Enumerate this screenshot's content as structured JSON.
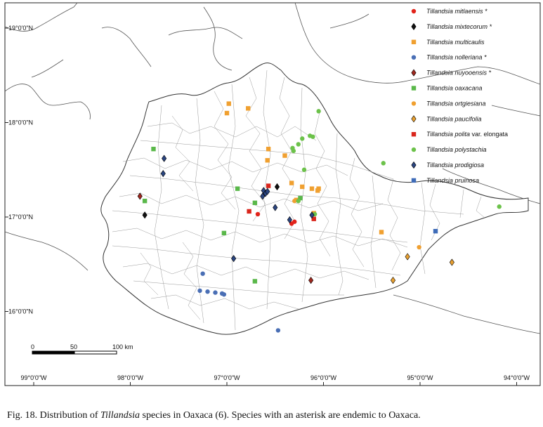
{
  "map": {
    "lat_labels": [
      {
        "lat": 19,
        "label": "19°0'0\"N"
      },
      {
        "lat": 18,
        "label": "18°0'0\"N"
      },
      {
        "lat": 17,
        "label": "17°0'0\"N"
      },
      {
        "lat": 16,
        "label": "16°0'0\"N"
      }
    ],
    "lon_labels": [
      {
        "lon": -99,
        "label": "99°0'0\"W"
      },
      {
        "lon": -98,
        "label": "98°0'0\"W"
      },
      {
        "lon": -97,
        "label": "97°0'0\"W"
      },
      {
        "lon": -96,
        "label": "96°0'0\"W"
      },
      {
        "lon": -95,
        "label": "95°0'0\"W"
      },
      {
        "lon": -94,
        "label": "94°0'0\"W"
      }
    ],
    "scale_bar": {
      "labels": [
        "0",
        "50",
        "100 km"
      ]
    },
    "colors": {
      "red": "#e2231a",
      "black": "#111111",
      "orange": "#f0a030",
      "blue": "#4a6fb5",
      "darkred": "#a0281e",
      "green": "#5ab84a",
      "lightgreen": "#6cc24a",
      "navy": "#2a4580",
      "poly_red": "#d9261c",
      "pruinosa": "#3f6cb8"
    }
  },
  "legend": [
    {
      "name": "Tillandsia mitlaensis *",
      "marker": "circle",
      "color": "#e2231a"
    },
    {
      "name": "Tillandsia mixtecorum *",
      "marker": "diamond",
      "color": "#111111"
    },
    {
      "name": "Tillandsia multicaulis",
      "marker": "square",
      "color": "#f0a030"
    },
    {
      "name": "Tillandsia nolleriana *",
      "marker": "circle",
      "color": "#4a6fb5"
    },
    {
      "name": "Tillandsia nuyooensis *",
      "marker": "diamond",
      "color": "#a0281e"
    },
    {
      "name": "Tillandsia oaxacana",
      "marker": "square",
      "color": "#5ab84a"
    },
    {
      "name": "Tillandsia ortgiesiana",
      "marker": "circle",
      "color": "#f0a030"
    },
    {
      "name": "Tillandsia paucifolia",
      "marker": "diamond",
      "color": "#e8a030"
    },
    {
      "name_italic": "Tillandsia polita",
      "name_rest": " var. elongata",
      "marker": "square",
      "color": "#d9261c"
    },
    {
      "name": "Tillandsia polystachia",
      "marker": "circle",
      "color": "#6cc24a"
    },
    {
      "name": "Tillandsia prodigiosa",
      "marker": "diamond",
      "color": "#2a4580"
    },
    {
      "name": "Tillandsia pruinosa",
      "marker": "square",
      "color": "#3f6cb8"
    }
  ],
  "records": [
    {
      "species": 0,
      "lon": -96.68,
      "lat": 17.03
    },
    {
      "species": 0,
      "lon": -96.33,
      "lat": 16.93
    },
    {
      "species": 0,
      "lon": -96.3,
      "lat": 16.95
    },
    {
      "species": 1,
      "lon": -97.85,
      "lat": 17.02
    },
    {
      "species": 1,
      "lon": -96.48,
      "lat": 17.32
    },
    {
      "species": 2,
      "lon": -96.98,
      "lat": 18.2
    },
    {
      "species": 2,
      "lon": -97.0,
      "lat": 18.1
    },
    {
      "species": 2,
      "lon": -96.78,
      "lat": 18.15
    },
    {
      "species": 2,
      "lon": -96.57,
      "lat": 17.72
    },
    {
      "species": 2,
      "lon": -96.58,
      "lat": 17.6
    },
    {
      "species": 2,
      "lon": -96.4,
      "lat": 17.65
    },
    {
      "species": 2,
      "lon": -96.12,
      "lat": 17.3
    },
    {
      "species": 2,
      "lon": -96.05,
      "lat": 17.3
    },
    {
      "species": 2,
      "lon": -96.06,
      "lat": 17.28
    },
    {
      "species": 2,
      "lon": -96.22,
      "lat": 17.32
    },
    {
      "species": 2,
      "lon": -96.33,
      "lat": 17.36
    },
    {
      "species": 2,
      "lon": -96.1,
      "lat": 17.04
    },
    {
      "species": 2,
      "lon": -96.28,
      "lat": 17.18
    },
    {
      "species": 2,
      "lon": -95.4,
      "lat": 16.84
    },
    {
      "species": 3,
      "lon": -97.25,
      "lat": 16.4
    },
    {
      "species": 3,
      "lon": -97.28,
      "lat": 16.22
    },
    {
      "species": 3,
      "lon": -97.2,
      "lat": 16.21
    },
    {
      "species": 3,
      "lon": -97.12,
      "lat": 16.2
    },
    {
      "species": 3,
      "lon": -97.05,
      "lat": 16.19
    },
    {
      "species": 3,
      "lon": -97.03,
      "lat": 16.18
    },
    {
      "species": 3,
      "lon": -96.47,
      "lat": 15.8
    },
    {
      "species": 4,
      "lon": -97.9,
      "lat": 17.22
    },
    {
      "species": 4,
      "lon": -96.13,
      "lat": 16.33
    },
    {
      "species": 5,
      "lon": -97.76,
      "lat": 17.72
    },
    {
      "species": 5,
      "lon": -97.85,
      "lat": 17.17
    },
    {
      "species": 5,
      "lon": -96.89,
      "lat": 17.3
    },
    {
      "species": 5,
      "lon": -96.71,
      "lat": 17.15
    },
    {
      "species": 5,
      "lon": -96.24,
      "lat": 17.2
    },
    {
      "species": 5,
      "lon": -97.03,
      "lat": 16.83
    },
    {
      "species": 5,
      "lon": -96.71,
      "lat": 16.32
    },
    {
      "species": 6,
      "lon": -96.3,
      "lat": 17.17
    },
    {
      "species": 6,
      "lon": -95.01,
      "lat": 16.68
    },
    {
      "species": 7,
      "lon": -95.13,
      "lat": 16.58
    },
    {
      "species": 7,
      "lon": -95.28,
      "lat": 16.33
    },
    {
      "species": 7,
      "lon": -94.67,
      "lat": 16.52
    },
    {
      "species": 8,
      "lon": -96.57,
      "lat": 17.33
    },
    {
      "species": 8,
      "lon": -96.77,
      "lat": 17.06
    },
    {
      "species": 8,
      "lon": -96.1,
      "lat": 16.98
    },
    {
      "species": 9,
      "lon": -96.05,
      "lat": 18.12
    },
    {
      "species": 9,
      "lon": -96.22,
      "lat": 17.83
    },
    {
      "species": 9,
      "lon": -96.14,
      "lat": 17.86
    },
    {
      "species": 9,
      "lon": -96.11,
      "lat": 17.85
    },
    {
      "species": 9,
      "lon": -96.26,
      "lat": 17.77
    },
    {
      "species": 9,
      "lon": -96.32,
      "lat": 17.73
    },
    {
      "species": 9,
      "lon": -96.31,
      "lat": 17.7
    },
    {
      "species": 9,
      "lon": -96.2,
      "lat": 17.5
    },
    {
      "species": 9,
      "lon": -96.26,
      "lat": 17.17
    },
    {
      "species": 9,
      "lon": -95.38,
      "lat": 17.57
    },
    {
      "species": 9,
      "lon": -94.18,
      "lat": 17.11
    },
    {
      "species": 9,
      "lon": -96.09,
      "lat": 17.03
    },
    {
      "species": 10,
      "lon": -97.65,
      "lat": 17.62
    },
    {
      "species": 10,
      "lon": -97.66,
      "lat": 17.46
    },
    {
      "species": 10,
      "lon": -96.62,
      "lat": 17.28
    },
    {
      "species": 10,
      "lon": -96.6,
      "lat": 17.25
    },
    {
      "species": 10,
      "lon": -96.63,
      "lat": 17.22
    },
    {
      "species": 10,
      "lon": -96.58,
      "lat": 17.27
    },
    {
      "species": 10,
      "lon": -96.5,
      "lat": 17.1
    },
    {
      "species": 10,
      "lon": -96.35,
      "lat": 16.97
    },
    {
      "species": 10,
      "lon": -96.12,
      "lat": 17.02
    },
    {
      "species": 10,
      "lon": -96.93,
      "lat": 16.56
    },
    {
      "species": 11,
      "lon": -94.84,
      "lat": 16.85
    }
  ],
  "caption": {
    "prefix": "Fig. 18. Distribution of ",
    "italic": "Tillandsia",
    "suffix": " species in Oaxaca (6). Species with an asterisk are endemic to Oaxaca."
  }
}
